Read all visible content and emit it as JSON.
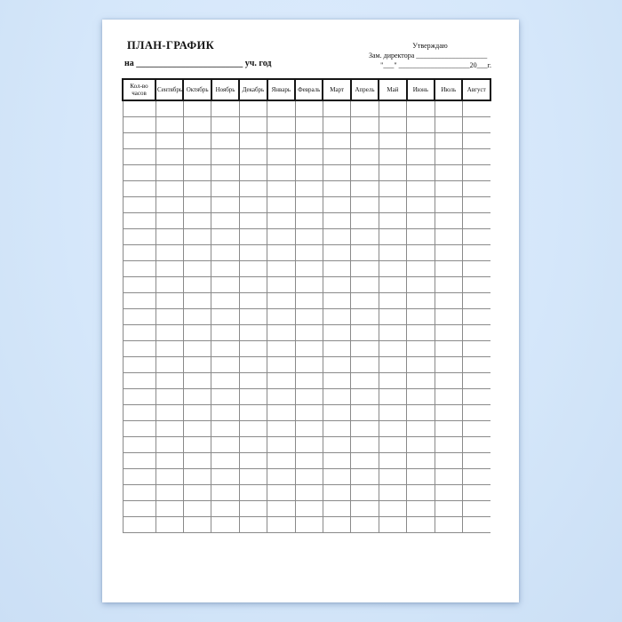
{
  "document": {
    "title": "ПЛАН-ГРАФИК",
    "approval": {
      "line1": "Утверждаю",
      "line2": "Зам. директора ____________________",
      "line3": "\"___\" ____________________20___г."
    },
    "year_line": {
      "prefix": "на",
      "blank": " ________________________ ",
      "suffix": "уч. год"
    }
  },
  "table": {
    "columns": [
      "Кол-во часов",
      "Сентябрь",
      "Октябрь",
      "Ноябрь",
      "Декабрь",
      "Январь",
      "Февраль",
      "Март",
      "Апрель",
      "Май",
      "Июнь",
      "Июль",
      "Август"
    ],
    "rows": 27
  }
}
